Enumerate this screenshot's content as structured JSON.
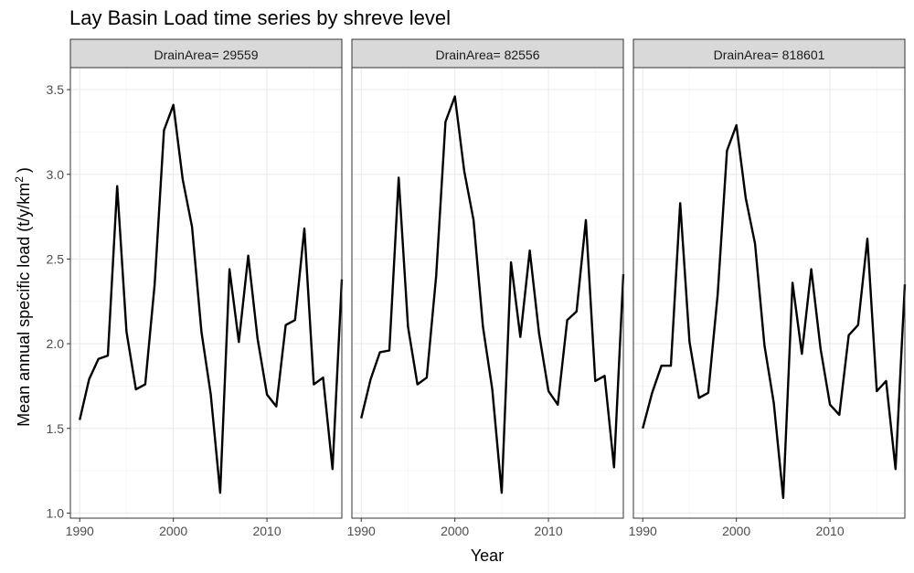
{
  "chart_data": {
    "type": "line",
    "title": "Lay Basin Load time series by shreve level",
    "xlabel": "Year",
    "ylabel_main": "Mean annual specific load (t/y/km",
    "ylabel_sup": "2",
    "ylabel_end": ")",
    "xlim": [
      1989,
      2018
    ],
    "ylim": [
      0.97,
      3.63
    ],
    "x_ticks": [
      1990,
      2000,
      2010
    ],
    "x_tick_labels": [
      "1990",
      "2000",
      "2010"
    ],
    "y_ticks": [
      1.0,
      1.5,
      2.0,
      2.5,
      3.0,
      3.5
    ],
    "y_tick_labels": [
      "1.0",
      "1.5",
      "2.0",
      "2.5",
      "3.0",
      "3.5"
    ],
    "grid": true,
    "colors": {
      "line": "#000000",
      "strip_fill": "#d9d9d9",
      "grid": "#ebebeb",
      "border": "#333333"
    },
    "panels": [
      {
        "strip_label": "DrainArea= 29559",
        "x": [
          1990,
          1991,
          1992,
          1993,
          1994,
          1995,
          1996,
          1997,
          1998,
          1999,
          2000,
          2001,
          2002,
          2003,
          2004,
          2005,
          2006,
          2007,
          2008,
          2009,
          2010,
          2011,
          2012,
          2013,
          2014,
          2015,
          2016,
          2017,
          2018
        ],
        "y": [
          1.55,
          1.79,
          1.91,
          1.93,
          2.93,
          2.07,
          1.73,
          1.76,
          2.35,
          3.26,
          3.41,
          2.97,
          2.69,
          2.07,
          1.7,
          1.12,
          2.44,
          2.01,
          2.52,
          2.03,
          1.7,
          1.63,
          2.11,
          2.14,
          2.68,
          1.76,
          1.8,
          1.26,
          2.38
        ]
      },
      {
        "strip_label": "DrainArea= 82556",
        "x": [
          1990,
          1991,
          1992,
          1993,
          1994,
          1995,
          1996,
          1997,
          1998,
          1999,
          2000,
          2001,
          2002,
          2003,
          2004,
          2005,
          2006,
          2007,
          2008,
          2009,
          2010,
          2011,
          2012,
          2013,
          2014,
          2015,
          2016,
          2017,
          2018
        ],
        "y": [
          1.56,
          1.79,
          1.95,
          1.96,
          2.98,
          2.1,
          1.76,
          1.8,
          2.4,
          3.31,
          3.46,
          3.02,
          2.73,
          2.1,
          1.73,
          1.12,
          2.48,
          2.04,
          2.55,
          2.06,
          1.72,
          1.64,
          2.14,
          2.19,
          2.73,
          1.78,
          1.81,
          1.27,
          2.41
        ]
      },
      {
        "strip_label": "DrainArea= 818601",
        "x": [
          1990,
          1991,
          1992,
          1993,
          1994,
          1995,
          1996,
          1997,
          1998,
          1999,
          2000,
          2001,
          2002,
          2003,
          2004,
          2005,
          2006,
          2007,
          2008,
          2009,
          2010,
          2011,
          2012,
          2013,
          2014,
          2015,
          2016,
          2017,
          2018
        ],
        "y": [
          1.5,
          1.71,
          1.87,
          1.87,
          2.83,
          2.01,
          1.68,
          1.71,
          2.29,
          3.14,
          3.29,
          2.86,
          2.59,
          1.99,
          1.65,
          1.09,
          2.36,
          1.94,
          2.44,
          1.97,
          1.64,
          1.58,
          2.05,
          2.11,
          2.62,
          1.72,
          1.78,
          1.26,
          2.35
        ]
      }
    ]
  }
}
